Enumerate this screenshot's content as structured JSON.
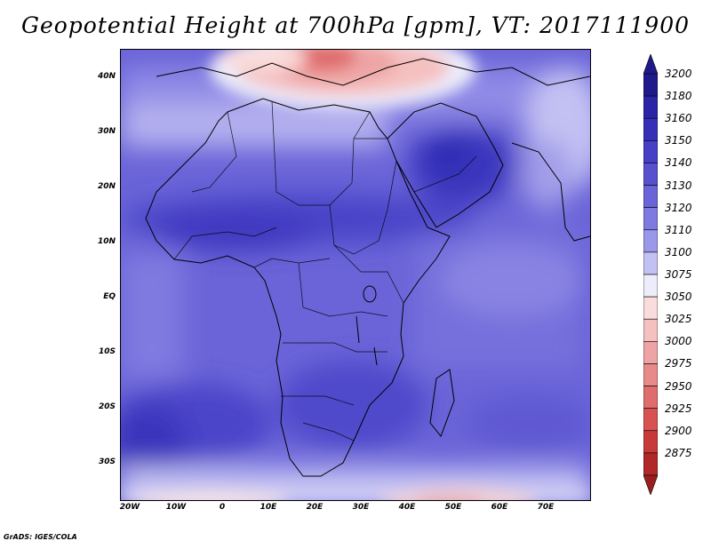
{
  "title": "Geopotential Height at 700hPa [gpm], VT: 2017111900",
  "credit": "GrADS: IGES/COLA",
  "map": {
    "lat_labels": [
      "40N",
      "30N",
      "20N",
      "10N",
      "EQ",
      "10S",
      "20S",
      "30S"
    ],
    "lon_labels": [
      "20W",
      "10W",
      "0",
      "10E",
      "20E",
      "30E",
      "40E",
      "50E",
      "60E",
      "70E"
    ],
    "region": "Africa, Middle East and western Indian Ocean",
    "overlay": "country boundaries"
  },
  "colorbar": {
    "levels": [
      "3200",
      "3180",
      "3160",
      "3150",
      "3140",
      "3130",
      "3120",
      "3110",
      "3100",
      "3075",
      "3050",
      "3025",
      "3000",
      "2975",
      "2950",
      "2925",
      "2900",
      "2875"
    ],
    "colors": [
      "#1e1a8c",
      "#2a25a6",
      "#3630b8",
      "#4640c6",
      "#5751d0",
      "#6a64d8",
      "#7f7ae0",
      "#9b97e9",
      "#c3c1f3",
      "#ececfb",
      "#fadcdc",
      "#f5c0c0",
      "#eea4a4",
      "#e88a8a",
      "#e06d6d",
      "#d85252",
      "#c83a3a",
      "#b02828"
    ],
    "top_arrow_color": "#1e1a8c",
    "bottom_arrow_color": "#9a1e1e"
  }
}
